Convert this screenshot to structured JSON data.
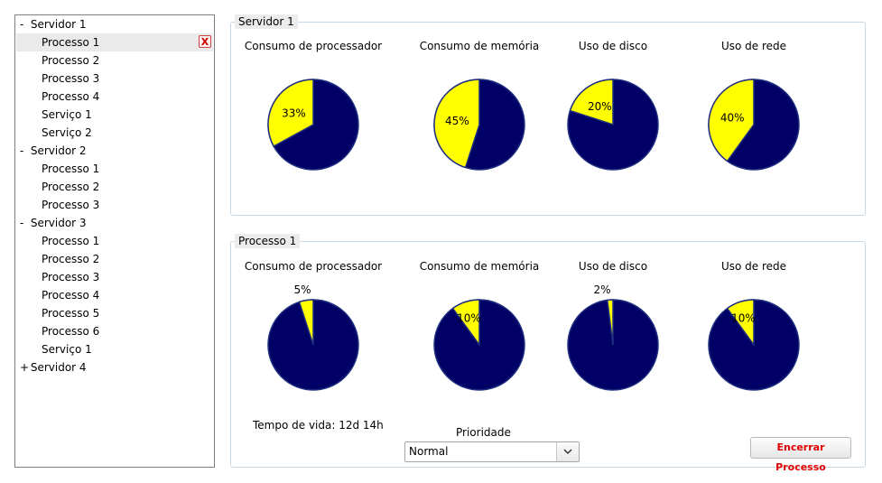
{
  "tree": {
    "close_label": "X",
    "rows": [
      {
        "toggle": "-",
        "label": "Servidor 1",
        "level": 0
      },
      {
        "toggle": "",
        "label": "Processo 1",
        "level": 1,
        "selected": true
      },
      {
        "toggle": "",
        "label": "Processo 2",
        "level": 1
      },
      {
        "toggle": "",
        "label": "Processo 3",
        "level": 1
      },
      {
        "toggle": "",
        "label": "Processo 4",
        "level": 1
      },
      {
        "toggle": "",
        "label": "Serviço 1",
        "level": 1
      },
      {
        "toggle": "",
        "label": "Serviço 2",
        "level": 1
      },
      {
        "toggle": "-",
        "label": "Servidor 2",
        "level": 0
      },
      {
        "toggle": "",
        "label": "Processo 1",
        "level": 1
      },
      {
        "toggle": "",
        "label": "Processo 2",
        "level": 1
      },
      {
        "toggle": "",
        "label": "Processo 3",
        "level": 1
      },
      {
        "toggle": "-",
        "label": "Servidor 3",
        "level": 0
      },
      {
        "toggle": "",
        "label": "Processo 1",
        "level": 1
      },
      {
        "toggle": "",
        "label": "Processo 2",
        "level": 1
      },
      {
        "toggle": "",
        "label": "Processo 3",
        "level": 1
      },
      {
        "toggle": "",
        "label": "Processo 4",
        "level": 1
      },
      {
        "toggle": "",
        "label": "Processo 5",
        "level": 1
      },
      {
        "toggle": "",
        "label": "Processo 6",
        "level": 1
      },
      {
        "toggle": "",
        "label": "Serviço 1",
        "level": 1
      },
      {
        "toggle": "+",
        "label": "Servidor 4",
        "level": 0
      }
    ]
  },
  "server_group": {
    "title": "Servidor 1"
  },
  "process_group": {
    "title": "Processo 1",
    "lifetime_label": "Tempo de vida: 12d 14h",
    "priority_label": "Prioridade",
    "priority_value": "Normal",
    "end_button": "Encerrar Processo"
  },
  "colors": {
    "used": "#ffff00",
    "free": "#000066",
    "outline": "#1f2f7f",
    "end_button_text": "#e00000"
  },
  "chart_data": [
    {
      "type": "pie",
      "group": "Servidor 1",
      "title": "Consumo de processador",
      "value": 33,
      "label": "33%"
    },
    {
      "type": "pie",
      "group": "Servidor 1",
      "title": "Consumo de memória",
      "value": 45,
      "label": "45%"
    },
    {
      "type": "pie",
      "group": "Servidor 1",
      "title": "Uso de disco",
      "value": 20,
      "label": "20%"
    },
    {
      "type": "pie",
      "group": "Servidor 1",
      "title": "Uso de rede",
      "value": 40,
      "label": "40%"
    },
    {
      "type": "pie",
      "group": "Processo 1",
      "title": "Consumo de processador",
      "value": 5,
      "label": "5%"
    },
    {
      "type": "pie",
      "group": "Processo 1",
      "title": "Consumo de memória",
      "value": 10,
      "label": "10%"
    },
    {
      "type": "pie",
      "group": "Processo 1",
      "title": "Uso de disco",
      "value": 2,
      "label": "2%"
    },
    {
      "type": "pie",
      "group": "Processo 1",
      "title": "Uso de rede",
      "value": 10,
      "label": "10%"
    }
  ]
}
